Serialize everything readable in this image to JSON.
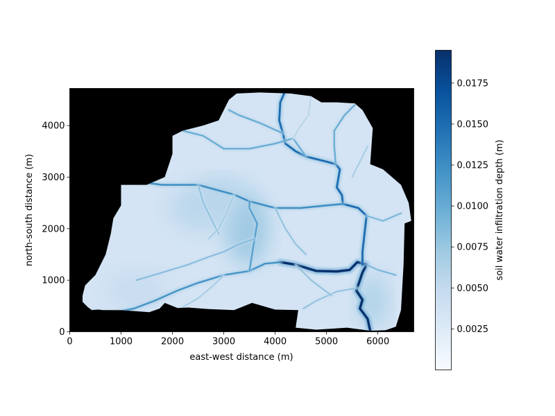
{
  "chart_data": {
    "type": "heatmap",
    "title": "",
    "xlabel": "east-west distance (m)",
    "ylabel": "north-south distance (m)",
    "xlim": [
      0,
      6700
    ],
    "ylim": [
      0,
      4720
    ],
    "xticks": [
      "0",
      "1000",
      "2000",
      "3000",
      "4000",
      "5000",
      "6000"
    ],
    "yticks": [
      "0",
      "1000",
      "2000",
      "3000",
      "4000"
    ],
    "colormap": "Blues",
    "background_color": "#000000",
    "colorbar": {
      "label": "soil water infiltration depth (m)",
      "range": [
        0.0,
        0.0195
      ],
      "ticks": [
        "0.0025",
        "0.0050",
        "0.0075",
        "0.0100",
        "0.0125",
        "0.0150",
        "0.0175"
      ],
      "tick_values": [
        0.0025,
        0.005,
        0.0075,
        0.01,
        0.0125,
        0.015,
        0.0175
      ]
    },
    "watershed_boundary": [
      [
        250,
        580
      ],
      [
        350,
        480
      ],
      [
        430,
        420
      ],
      [
        550,
        430
      ],
      [
        650,
        420
      ],
      [
        1000,
        420
      ],
      [
        1550,
        380
      ],
      [
        1750,
        450
      ],
      [
        1850,
        560
      ],
      [
        2100,
        460
      ],
      [
        2300,
        470
      ],
      [
        2700,
        440
      ],
      [
        3200,
        420
      ],
      [
        3550,
        560
      ],
      [
        4000,
        430
      ],
      [
        4450,
        420
      ],
      [
        4400,
        80
      ],
      [
        4800,
        40
      ],
      [
        5400,
        80
      ],
      [
        5850,
        20
      ],
      [
        6150,
        30
      ],
      [
        6350,
        100
      ],
      [
        6450,
        420
      ],
      [
        6500,
        1300
      ],
      [
        6520,
        2100
      ],
      [
        6650,
        2150
      ],
      [
        6600,
        2500
      ],
      [
        6450,
        2850
      ],
      [
        6100,
        3150
      ],
      [
        5850,
        3250
      ],
      [
        5900,
        3950
      ],
      [
        5700,
        4300
      ],
      [
        5550,
        4430
      ],
      [
        5200,
        4450
      ],
      [
        4900,
        4450
      ],
      [
        4700,
        4570
      ],
      [
        4300,
        4620
      ],
      [
        3700,
        4640
      ],
      [
        3250,
        4620
      ],
      [
        3100,
        4500
      ],
      [
        2900,
        4100
      ],
      [
        2600,
        4000
      ],
      [
        2200,
        3900
      ],
      [
        2000,
        3800
      ],
      [
        2000,
        3450
      ],
      [
        1850,
        3000
      ],
      [
        1500,
        2850
      ],
      [
        1000,
        2850
      ],
      [
        1000,
        2450
      ],
      [
        850,
        2200
      ],
      [
        800,
        1900
      ],
      [
        700,
        1500
      ],
      [
        500,
        1100
      ],
      [
        400,
        1000
      ],
      [
        300,
        900
      ],
      [
        250,
        700
      ]
    ],
    "channels": [
      {
        "name": "",
        "intensity": 0.0195,
        "points": [
          [
            5850,
            20
          ],
          [
            5800,
            250
          ],
          [
            5650,
            450
          ],
          [
            5700,
            620
          ],
          [
            5580,
            800
          ],
          [
            5650,
            1000
          ],
          [
            5700,
            1150
          ],
          [
            5780,
            1300
          ],
          [
            5600,
            1350
          ],
          [
            5450,
            1200
          ],
          [
            5200,
            1170
          ],
          [
            4800,
            1180
          ],
          [
            4400,
            1300
          ],
          [
            4100,
            1350
          ]
        ]
      },
      {
        "name": "",
        "intensity": 0.015,
        "points": [
          [
            5700,
            1300
          ],
          [
            5700,
            1550
          ],
          [
            5740,
            1900
          ],
          [
            5780,
            2250
          ],
          [
            5620,
            2400
          ],
          [
            5320,
            2480
          ],
          [
            5300,
            2650
          ],
          [
            5200,
            2800
          ],
          [
            5260,
            3150
          ],
          [
            5180,
            3250
          ],
          [
            5000,
            3300
          ],
          [
            4600,
            3400
          ],
          [
            4400,
            3500
          ],
          [
            4200,
            3650
          ],
          [
            4150,
            3850
          ],
          [
            4080,
            4100
          ],
          [
            4100,
            4450
          ],
          [
            4180,
            4630
          ]
        ]
      },
      {
        "name": "",
        "intensity": 0.0125,
        "points": [
          [
            5320,
            2480
          ],
          [
            5000,
            2450
          ],
          [
            4500,
            2400
          ],
          [
            4000,
            2400
          ],
          [
            3500,
            2530
          ],
          [
            3200,
            2660
          ],
          [
            2500,
            2850
          ],
          [
            1800,
            2850
          ],
          [
            1400,
            2900
          ]
        ]
      },
      {
        "name": "",
        "intensity": 0.012,
        "points": [
          [
            4100,
            1350
          ],
          [
            3800,
            1320
          ],
          [
            3500,
            1180
          ],
          [
            3000,
            1100
          ],
          [
            2500,
            950
          ],
          [
            2100,
            800
          ],
          [
            1650,
            600
          ],
          [
            1250,
            450
          ],
          [
            750,
            350
          ],
          [
            450,
            400
          ]
        ]
      },
      {
        "name": "",
        "intensity": 0.011,
        "points": [
          [
            3500,
            1180
          ],
          [
            3550,
            1500
          ],
          [
            3600,
            1800
          ],
          [
            3650,
            2100
          ],
          [
            3500,
            2400
          ],
          [
            3500,
            2530
          ]
        ]
      },
      {
        "name": "",
        "intensity": 0.01,
        "points": [
          [
            4600,
            3400
          ],
          [
            4350,
            3750
          ],
          [
            4000,
            3650
          ],
          [
            3500,
            3550
          ],
          [
            3000,
            3550
          ],
          [
            2600,
            3800
          ],
          [
            2200,
            3900
          ]
        ]
      },
      {
        "name": "",
        "intensity": 0.01,
        "points": [
          [
            4150,
            3850
          ],
          [
            3700,
            4050
          ],
          [
            3300,
            4200
          ],
          [
            3100,
            4300
          ]
        ]
      },
      {
        "name": "",
        "intensity": 0.01,
        "points": [
          [
            5180,
            3250
          ],
          [
            5150,
            3600
          ],
          [
            5150,
            3900
          ],
          [
            5350,
            4200
          ],
          [
            5550,
            4400
          ]
        ]
      },
      {
        "name": "",
        "intensity": 0.009,
        "points": [
          [
            6450,
            2300
          ],
          [
            6100,
            2150
          ],
          [
            5780,
            2250
          ]
        ]
      },
      {
        "name": "",
        "intensity": 0.009,
        "points": [
          [
            5780,
            1300
          ],
          [
            6000,
            1200
          ],
          [
            6350,
            1100
          ]
        ]
      },
      {
        "name": "",
        "intensity": 0.0085,
        "points": [
          [
            3600,
            1800
          ],
          [
            3300,
            1700
          ],
          [
            3000,
            1550
          ],
          [
            2700,
            1450
          ],
          [
            2300,
            1300
          ],
          [
            1800,
            1150
          ],
          [
            1300,
            1000
          ]
        ]
      },
      {
        "name": "",
        "intensity": 0.008,
        "points": [
          [
            4550,
            450
          ],
          [
            4800,
            600
          ],
          [
            5200,
            780
          ],
          [
            5600,
            850
          ]
        ]
      },
      {
        "name": "",
        "intensity": 0.008,
        "points": [
          [
            4400,
            1300
          ],
          [
            4700,
            1000
          ],
          [
            4900,
            850
          ],
          [
            5100,
            700
          ]
        ]
      },
      {
        "name": "",
        "intensity": 0.008,
        "points": [
          [
            4000,
            2400
          ],
          [
            4200,
            2000
          ],
          [
            4400,
            1700
          ],
          [
            4600,
            1500
          ]
        ]
      },
      {
        "name": "",
        "intensity": 0.008,
        "points": [
          [
            2500,
            2850
          ],
          [
            2600,
            2500
          ],
          [
            2750,
            2200
          ],
          [
            2900,
            1900
          ]
        ]
      },
      {
        "name": "",
        "intensity": 0.007,
        "points": [
          [
            3000,
            1100
          ],
          [
            2800,
            900
          ],
          [
            2500,
            650
          ],
          [
            2200,
            480
          ]
        ]
      },
      {
        "name": "",
        "intensity": 0.007,
        "points": [
          [
            3200,
            2660
          ],
          [
            3050,
            2300
          ],
          [
            2900,
            2000
          ],
          [
            2700,
            1800
          ]
        ]
      },
      {
        "name": "",
        "intensity": 0.007,
        "points": [
          [
            5500,
            3000
          ],
          [
            5650,
            3300
          ],
          [
            5800,
            3600
          ]
        ]
      },
      {
        "name": "",
        "intensity": 0.006,
        "points": [
          [
            4700,
            4570
          ],
          [
            4650,
            4200
          ],
          [
            4500,
            4000
          ],
          [
            4350,
            3750
          ]
        ]
      }
    ],
    "wet_zones": [
      {
        "x": 3450,
        "y": 2000,
        "rx": 420,
        "ry": 700,
        "intensity": 0.008
      },
      {
        "x": 2600,
        "y": 2400,
        "rx": 650,
        "ry": 450,
        "intensity": 0.006
      },
      {
        "x": 3000,
        "y": 2750,
        "rx": 500,
        "ry": 250,
        "intensity": 0.006
      },
      {
        "x": 1300,
        "y": 800,
        "rx": 550,
        "ry": 350,
        "intensity": 0.005
      },
      {
        "x": 5900,
        "y": 600,
        "rx": 280,
        "ry": 500,
        "intensity": 0.007
      }
    ],
    "base_intensity": 0.0035,
    "grid": false,
    "legend": "colorbar-right"
  }
}
